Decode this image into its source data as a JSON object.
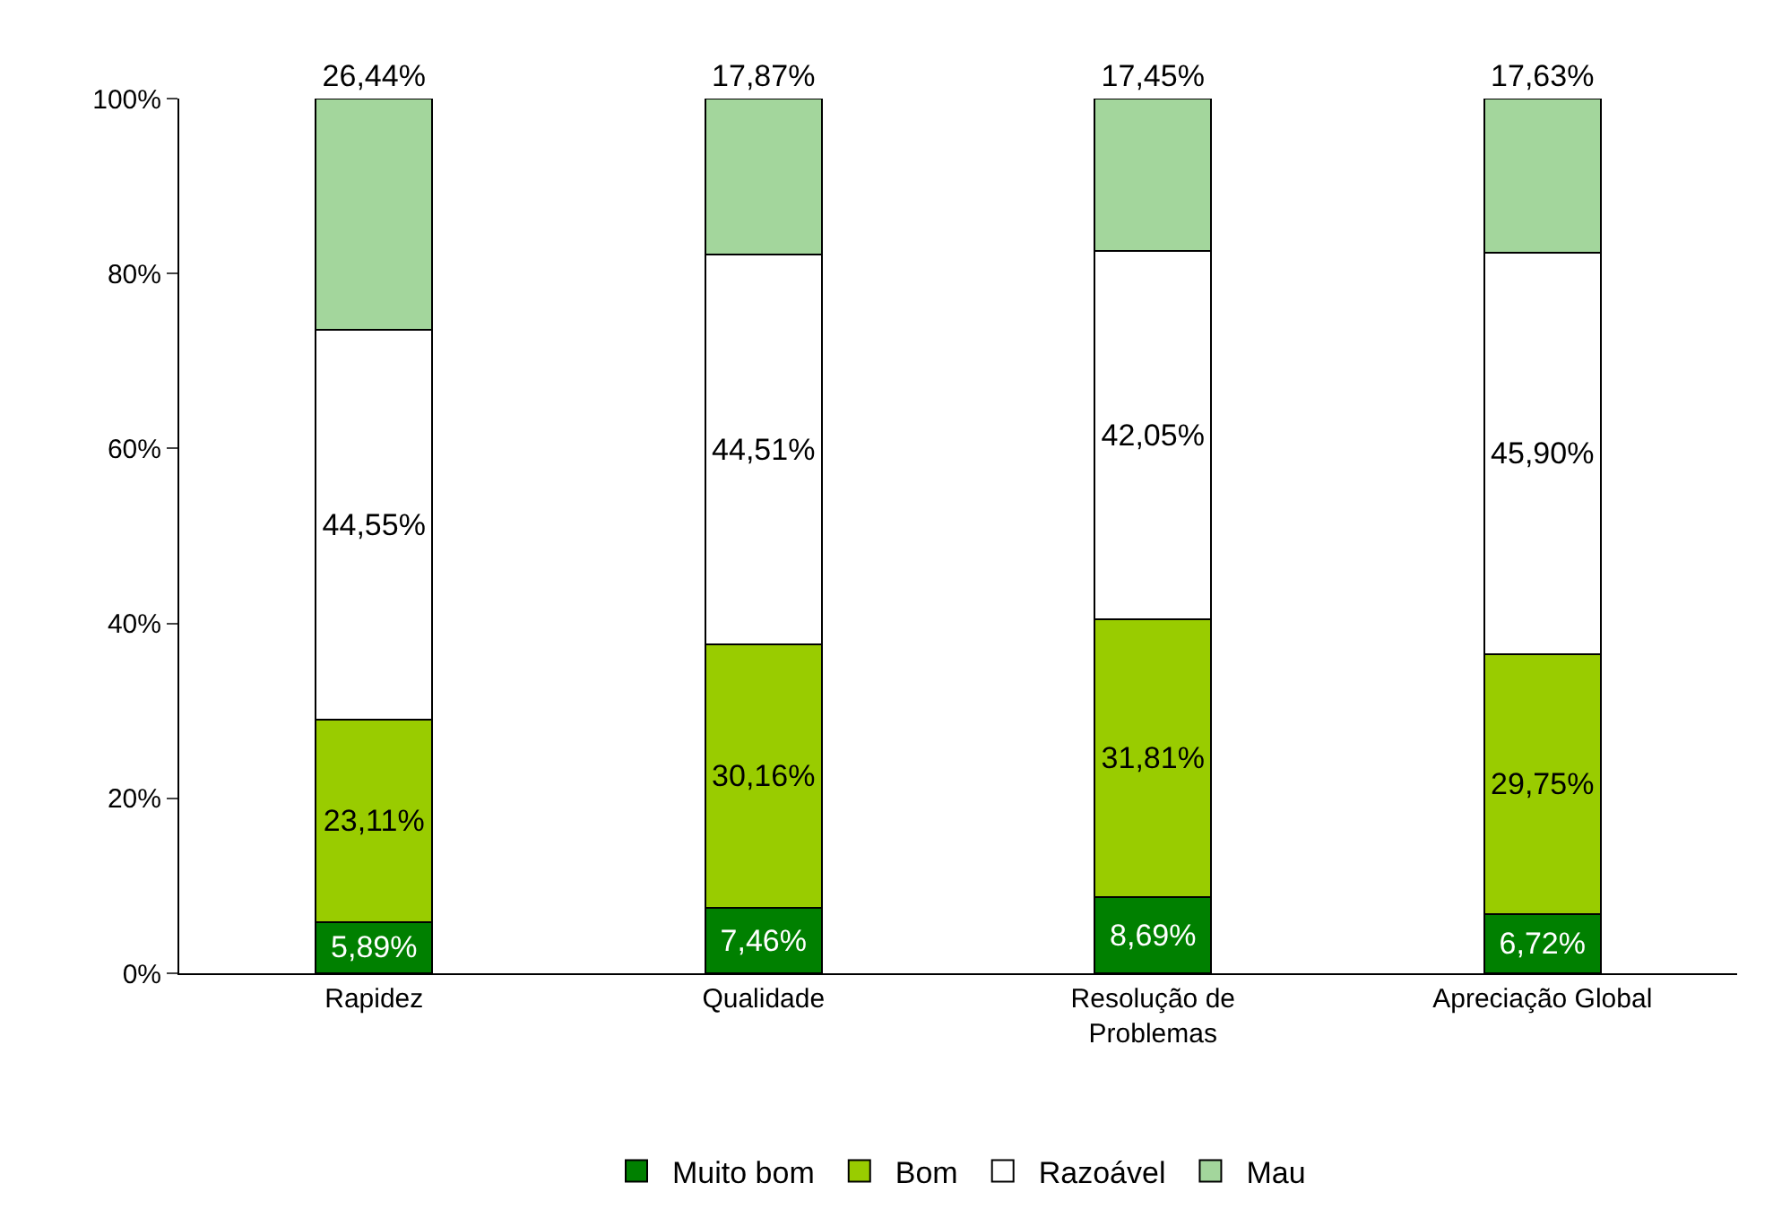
{
  "chart_data": {
    "type": "bar",
    "stacked": true,
    "categories": [
      "Rapidez",
      "Qualidade",
      "Resolução de Problemas",
      "Apreciação Global"
    ],
    "series": [
      {
        "name": "Muito bom",
        "color": "#008000",
        "values": [
          5.89,
          7.46,
          8.69,
          6.72
        ],
        "value_labels": [
          "5,89%",
          "7,46%",
          "8,69%",
          "6,72%"
        ]
      },
      {
        "name": "Bom",
        "color": "#99cc00",
        "values": [
          23.11,
          30.16,
          31.81,
          29.75
        ],
        "value_labels": [
          "23,11%",
          "30,16%",
          "31,81%",
          "29,75%"
        ]
      },
      {
        "name": "Razoável",
        "color": "#ffffff",
        "values": [
          44.55,
          44.51,
          42.05,
          45.9
        ],
        "value_labels": [
          "44,55%",
          "44,51%",
          "42,05%",
          "45,90%"
        ]
      },
      {
        "name": "Mau",
        "color": "#a3d69c",
        "values": [
          26.44,
          17.87,
          17.45,
          17.63
        ],
        "value_labels": [
          "26,44%",
          "17,87%",
          "17,45%",
          "17,63%"
        ]
      }
    ],
    "ylim": [
      0,
      100
    ],
    "yticks": [
      {
        "value": 0,
        "label": "0%"
      },
      {
        "value": 20,
        "label": "20%"
      },
      {
        "value": 40,
        "label": "40%"
      },
      {
        "value": 60,
        "label": "60%"
      },
      {
        "value": 80,
        "label": "80%"
      },
      {
        "value": 100,
        "label": "100%"
      }
    ],
    "grid": false,
    "legend": "bottom"
  }
}
